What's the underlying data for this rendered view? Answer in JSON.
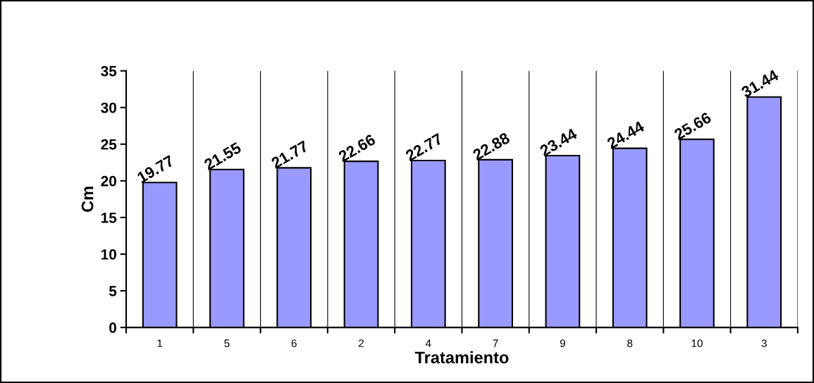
{
  "chart_data": {
    "type": "bar",
    "xlabel": "Tratamiento",
    "ylabel": "Cm",
    "categories": [
      "1",
      "5",
      "6",
      "2",
      "4",
      "7",
      "9",
      "8",
      "10",
      "3"
    ],
    "values": [
      19.77,
      21.55,
      21.77,
      22.66,
      22.77,
      22.88,
      23.44,
      24.44,
      25.66,
      31.44
    ],
    "color": "#9999ff",
    "ylim": [
      0,
      35
    ],
    "yticks": [
      0,
      5,
      10,
      15,
      20,
      25,
      30,
      35
    ],
    "grid": "x",
    "data_labels": true
  }
}
